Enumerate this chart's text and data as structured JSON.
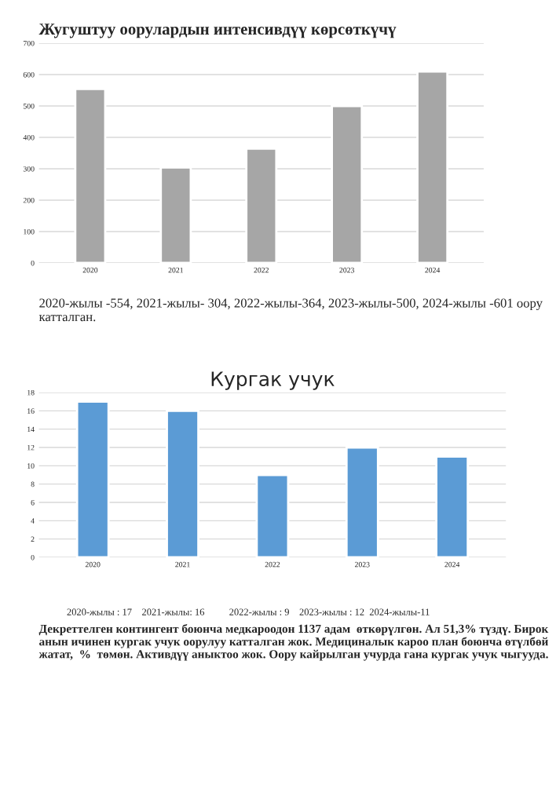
{
  "chart_data": [
    {
      "type": "bar",
      "title": "Жугуштуу оорулардын интенсивдүү көрсөткүчү",
      "categories": [
        "2020",
        "2021",
        "2022",
        "2023",
        "2024"
      ],
      "values": [
        554,
        304,
        364,
        500,
        610
      ],
      "color": "#a6a6a6",
      "ylim": [
        0,
        700
      ],
      "yticks": [
        0,
        100,
        200,
        300,
        400,
        500,
        600,
        700
      ],
      "grid": "y",
      "annotations": [
        "2020-жылы -554, 2021-жылы- 304, 2022-жылы-364, 2023-жылы-500, 2024-жылы -601 оору катталган."
      ]
    },
    {
      "type": "bar",
      "title": "Кургак учук",
      "categories": [
        "2020",
        "2021",
        "2022",
        "2023",
        "2024"
      ],
      "values": [
        17,
        16,
        9,
        12,
        11
      ],
      "color": "#5b9bd5",
      "ylim": [
        0,
        18
      ],
      "yticks": [
        0,
        2,
        4,
        6,
        8,
        10,
        12,
        14,
        16,
        18
      ],
      "grid": "y",
      "annotations": [
        "2020-жылы : 17    2021-жылы: 16          2022-жылы : 9    2023-жылы : 12  2024-жылы-11",
        "Декреттелген контингент боюнча медкароодон 1137 адам  өткөрүлгөн. Ал 51,3% түздү. Бирок анын ичинен кургак учук оорулуу катталган жок. Медициналык кароо план боюнча өтүлбөй жатат,  %  төмөн. Активдүү аныктоо жок. Оору кайрылган учурда гана кургак учук чыгууда."
      ]
    }
  ]
}
